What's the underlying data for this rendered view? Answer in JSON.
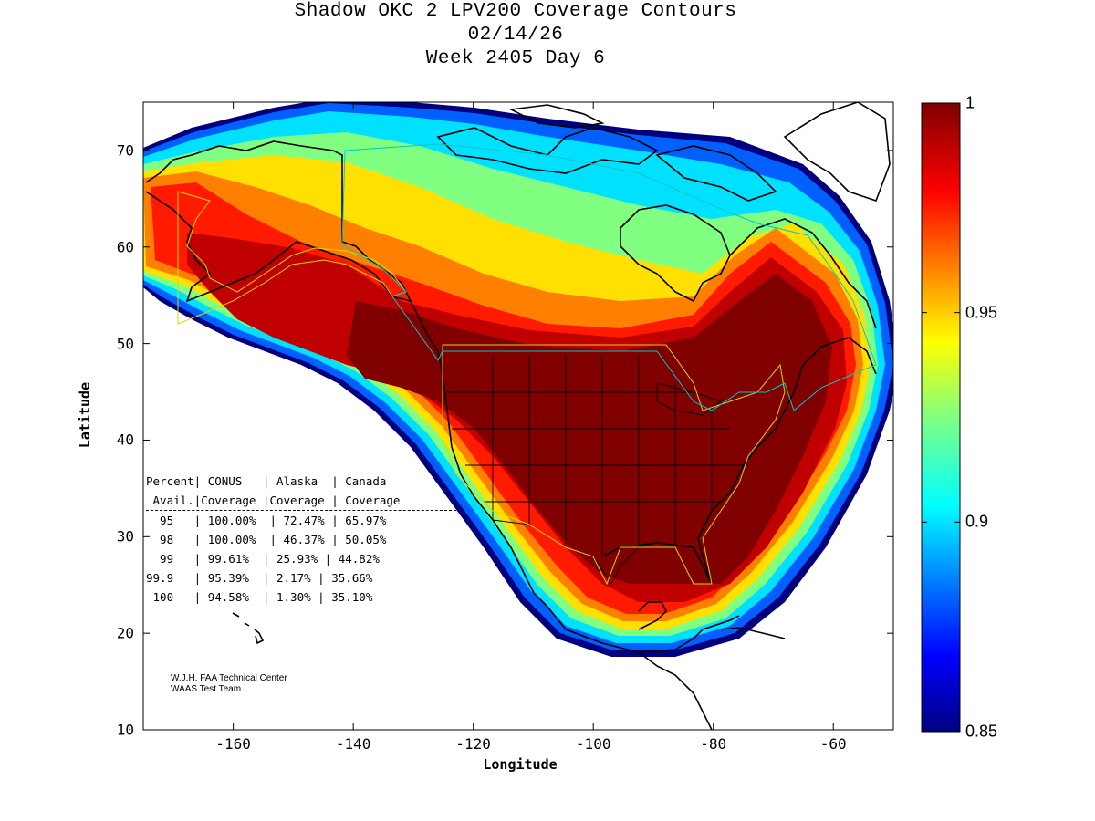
{
  "title": {
    "line1": "Shadow OKC 2 LPV200 Coverage Contours",
    "line2": "02/14/26",
    "line3": "Week 2405 Day 6"
  },
  "axes": {
    "xlabel": "Longitude",
    "ylabel": "Latitude",
    "xticks": [
      "-160",
      "-140",
      "-120",
      "-100",
      "-80",
      "-60"
    ],
    "xtick_values": [
      -160,
      -140,
      -120,
      -100,
      -80,
      -60
    ],
    "yticks": [
      "10",
      "20",
      "30",
      "40",
      "50",
      "60",
      "70"
    ],
    "ytick_values": [
      10,
      20,
      30,
      40,
      50,
      60,
      70
    ],
    "xlim": [
      -175,
      -50
    ],
    "ylim": [
      10,
      75
    ]
  },
  "colorbar": {
    "colormap": "jet",
    "min": 0.85,
    "max": 1,
    "ticks": [
      "1",
      "0.95",
      "0.9",
      "0.85"
    ],
    "tick_values": [
      1,
      0.95,
      0.9,
      0.85
    ]
  },
  "stats": {
    "header1": "Percent| CONUS   | Alaska  | Canada",
    "header2": " Avail.|Coverage |Coverage | Coverage",
    "rows": [
      "  95   | 100.00%  | 72.47% | 65.97%",
      "  98   | 100.00%  | 46.37% | 50.05%",
      "  99   | 99.61%  | 25.93% | 44.82%",
      "99.9   | 95.39%  | 2.17% | 35.66%",
      " 100   | 94.58%  | 1.30% | 35.10%"
    ]
  },
  "credit": {
    "line1": "W.J.H. FAA Technical Center",
    "line2": "WAAS Test Team"
  },
  "colors": {
    "deep_red": "#7f0000",
    "red": "#ff0000",
    "orange": "#ff8000",
    "yellow": "#ffff00",
    "green": "#80ff80",
    "cyan": "#00ffff",
    "blue": "#0000ff",
    "navy": "#00007f"
  }
}
